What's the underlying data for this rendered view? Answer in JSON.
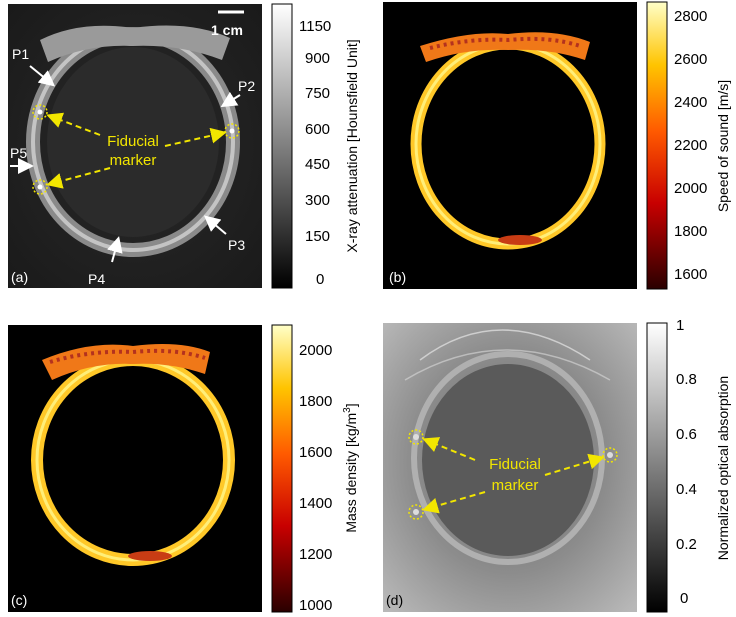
{
  "panels": {
    "a": {
      "label": "(a)",
      "scale_bar": "1 cm",
      "points": [
        "P1",
        "P2",
        "P3",
        "P4",
        "P5"
      ],
      "annotation_line1": "Fiducial",
      "annotation_line2": "marker",
      "colorbar": {
        "title": "X-ray attenuation [Hounsfield Unit]",
        "ticks": [
          "1150",
          "900",
          "750",
          "600",
          "450",
          "300",
          "150",
          "0"
        ],
        "colormap": "gray"
      }
    },
    "b": {
      "label": "(b)",
      "colorbar": {
        "title": "Speed of sound [m/s]",
        "ticks": [
          "2800",
          "2600",
          "2400",
          "2200",
          "2000",
          "1800",
          "1600"
        ],
        "colormap": "hot"
      }
    },
    "c": {
      "label": "(c)",
      "colorbar": {
        "title": "Mass density  [kg/m",
        "title_sup": "3",
        "title_end": "]",
        "ticks": [
          "2000",
          "1800",
          "1600",
          "1400",
          "1200",
          "1000"
        ],
        "colormap": "hot"
      }
    },
    "d": {
      "label": "(d)",
      "annotation_line1": "Fiducial",
      "annotation_line2": "marker",
      "colorbar": {
        "title": "Normalized optical absorption",
        "ticks": [
          "1",
          "0.8",
          "0.6",
          "0.4",
          "0.2",
          "0"
        ],
        "colormap": "gray"
      }
    }
  },
  "colors": {
    "annotation": "#f2e600",
    "bone_hot": "#ffd21e",
    "bone_dark": "#b4321e"
  }
}
